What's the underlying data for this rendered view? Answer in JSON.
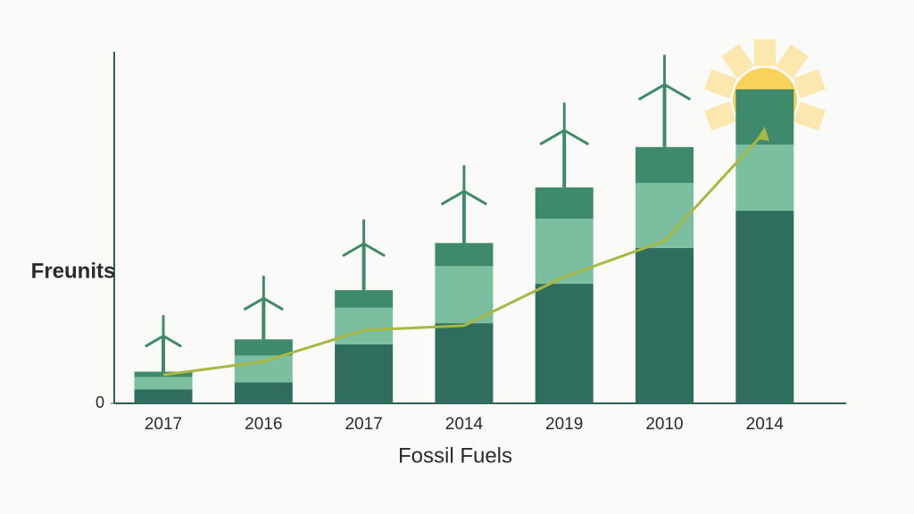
{
  "chart_data": {
    "type": "stacked_bar_line",
    "y_label": "Freunits",
    "x_label": "Fossil Fuels",
    "categories": [
      "2017",
      "2016",
      "2017",
      "2014",
      "2019",
      "2010",
      "2014"
    ],
    "ylim": [
      0,
      100
    ],
    "yticks": [
      0
    ],
    "series": [
      {
        "color": "#2f6e5e",
        "values": [
          4,
          6,
          16.8,
          22.8,
          34,
          44.2,
          54.8
        ]
      },
      {
        "color": "#7cbfa0",
        "values": [
          3.5,
          7.6,
          10.4,
          16.2,
          18.5,
          18.5,
          18.8
        ]
      },
      {
        "color": "#3f8a6c",
        "values": [
          1.5,
          4.6,
          5,
          6.6,
          8.9,
          10.2,
          15.7
        ]
      }
    ],
    "line": {
      "color": "#a8b840",
      "values": [
        8.1,
        11.9,
        20.8,
        22.1,
        36,
        46.2,
        77.2
      ]
    }
  }
}
